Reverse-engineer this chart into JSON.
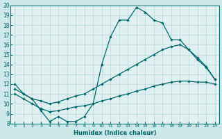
{
  "xlabel": "Humidex (Indice chaleur)",
  "xlim": [
    -0.5,
    23.5
  ],
  "ylim": [
    8,
    20
  ],
  "xticks": [
    0,
    1,
    2,
    3,
    4,
    5,
    6,
    7,
    8,
    9,
    10,
    11,
    12,
    13,
    14,
    15,
    16,
    17,
    18,
    19,
    20,
    21,
    22,
    23
  ],
  "yticks": [
    8,
    9,
    10,
    11,
    12,
    13,
    14,
    15,
    16,
    17,
    18,
    19,
    20
  ],
  "line_color": "#006666",
  "bg_color": "#cce8e8",
  "plot_bg_color": "#dff0f0",
  "grid_color": "#b8d8d8",
  "series": {
    "spike": [
      12,
      11,
      10.5,
      9.3,
      8.2,
      8.7,
      8.2,
      8.2,
      8.7,
      10.0,
      14.0,
      16.8,
      18.5,
      18.5,
      19.8,
      19.3,
      18.5,
      18.2,
      16.5,
      16.5,
      15.5,
      14.5,
      13.7,
      12.5
    ],
    "mid": [
      11.5,
      11.0,
      10.5,
      10.3,
      10.0,
      10.2,
      10.5,
      10.8,
      11.0,
      11.5,
      12.0,
      12.5,
      13.0,
      13.5,
      14.0,
      14.5,
      15.0,
      15.5,
      15.8,
      16.0,
      15.5,
      14.7,
      13.8,
      12.5
    ],
    "bot": [
      11.0,
      10.5,
      10.0,
      9.5,
      9.2,
      9.3,
      9.5,
      9.7,
      9.8,
      10.0,
      10.3,
      10.5,
      10.8,
      11.0,
      11.3,
      11.5,
      11.8,
      12.0,
      12.2,
      12.3,
      12.3,
      12.2,
      12.2,
      12.0
    ]
  },
  "marker": "D",
  "marker_size": 1.8,
  "line_width": 0.9
}
